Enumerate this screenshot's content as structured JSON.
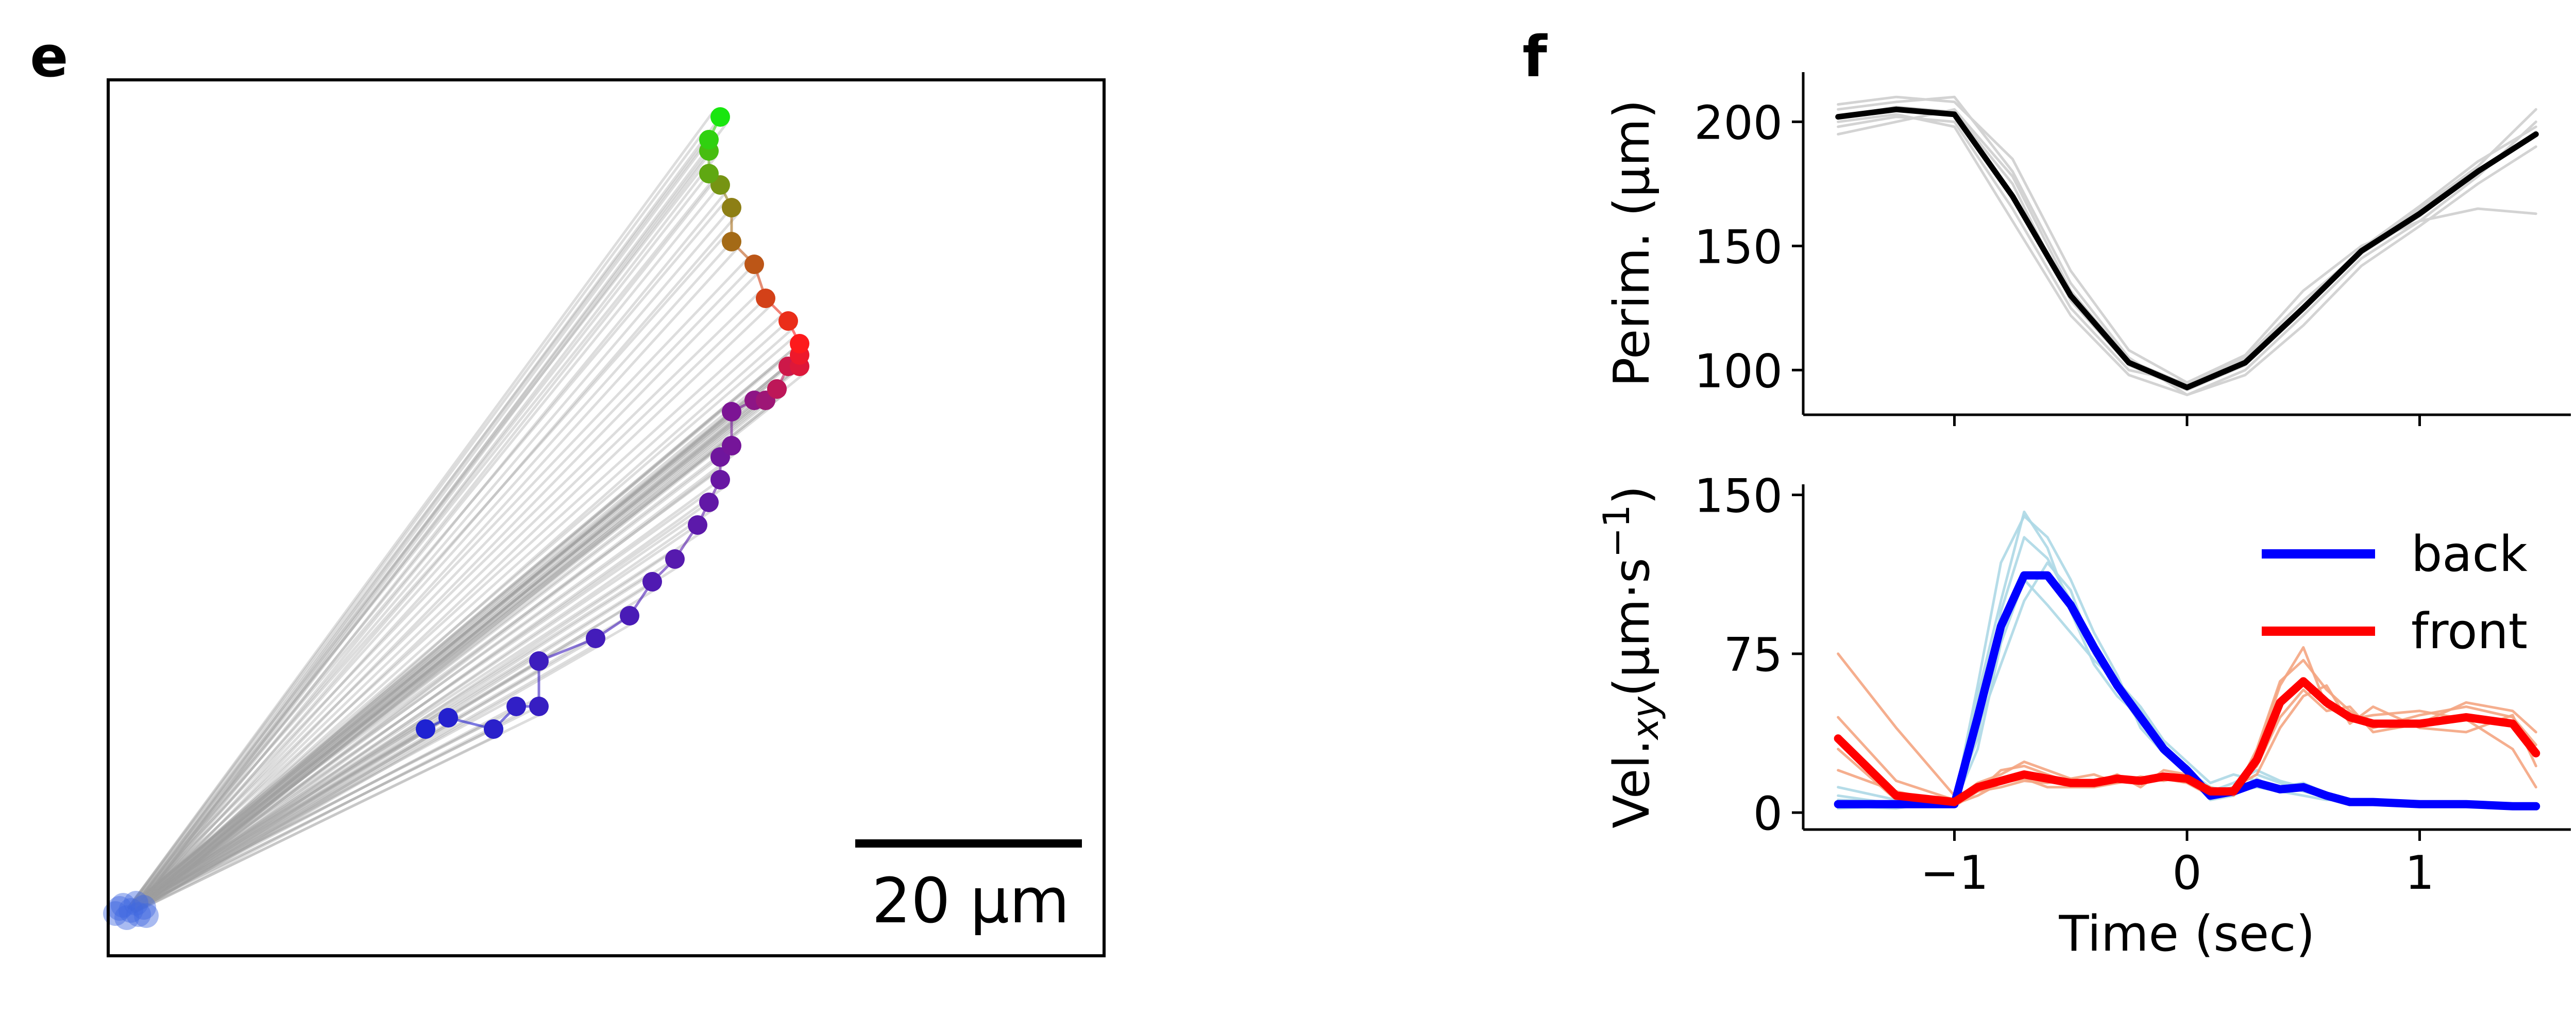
{
  "panels": {
    "e": "e",
    "f": "f"
  },
  "chart_data": [
    {
      "type": "scatter",
      "panel": "e",
      "title": "",
      "xlabel": "",
      "ylabel": "",
      "axes_ticks": false,
      "scalebar": {
        "label": "20 μm",
        "length_um": 20
      },
      "units": "μm",
      "anchor_point": {
        "x": 2,
        "y": 4,
        "color": "#4169e1"
      },
      "trajectory": {
        "x": [
          28,
          30,
          34,
          36,
          38,
          38,
          43,
          46,
          48,
          50,
          52,
          53,
          54,
          54,
          55,
          55,
          57,
          58,
          59,
          59,
          60,
          61,
          61,
          61,
          60,
          58,
          57,
          55,
          55,
          54,
          53,
          53,
          53,
          54
        ],
        "y": [
          20,
          21,
          20,
          22,
          22,
          26,
          28,
          30,
          33,
          35,
          38,
          40,
          42,
          44,
          45,
          48,
          49,
          49,
          50,
          50,
          52,
          52,
          53,
          54,
          56,
          58,
          61,
          63,
          66,
          68,
          69,
          71,
          72,
          74
        ],
        "color_start": "#1e22d2",
        "color_mid": "#7a1496",
        "color_red": "#ff1a1a",
        "color_end": "#19e60f"
      },
      "tether_color": "#9e9e9e"
    },
    {
      "type": "line",
      "panel": "f",
      "title": "",
      "xlabel": "",
      "ylabel": "Perim. (μm)",
      "xlim": [
        -1.65,
        1.65
      ],
      "ylim": [
        82,
        220
      ],
      "yticks": [
        100,
        150,
        200
      ],
      "xticks": [
        -1,
        0,
        1
      ],
      "show_xtick_labels": false,
      "x": [
        -1.5,
        -1.25,
        -1.0,
        -0.75,
        -0.5,
        -0.25,
        0.0,
        0.25,
        0.5,
        0.75,
        1.0,
        1.25,
        1.5
      ],
      "series": [
        {
          "values": [
            202,
            205,
            203,
            170,
            130,
            103,
            93,
            103,
            125,
            148,
            163,
            180,
            195
          ],
          "color": "#000000",
          "width": 11
        }
      ],
      "trials": [
        [
          205,
          208,
          210,
          180,
          135,
          105,
          90,
          100,
          122,
          145,
          160,
          178,
          200
        ],
        [
          200,
          203,
          198,
          160,
          122,
          98,
          90,
          98,
          118,
          142,
          158,
          175,
          190
        ],
        [
          198,
          202,
          200,
          165,
          125,
          100,
          95,
          105,
          128,
          148,
          165,
          182,
          205
        ],
        [
          207,
          210,
          208,
          185,
          140,
          108,
          95,
          106,
          132,
          150,
          160,
          165,
          163
        ],
        [
          202,
          206,
          204,
          175,
          128,
          102,
          92,
          102,
          124,
          147,
          162,
          180,
          196
        ],
        [
          195,
          200,
          205,
          178,
          132,
          104,
          94,
          104,
          126,
          149,
          166,
          184,
          198
        ]
      ],
      "trial_color": "#d3d3d3"
    },
    {
      "type": "line",
      "panel": "f",
      "title": "",
      "xlabel": "Time (sec)",
      "ylabel_main": "Vel.",
      "ylabel_sub": "xy",
      "ylabel_unit": "(μm·s",
      "ylabel_sup": "−1",
      "ylabel_close": ")",
      "xlim": [
        -1.65,
        1.65
      ],
      "ylim": [
        -8,
        155
      ],
      "yticks": [
        0,
        75,
        150
      ],
      "xticks": [
        -1,
        0,
        1
      ],
      "xtick_labels": [
        "−1",
        "0",
        "1"
      ],
      "legend_position": "top-right",
      "x": [
        -1.5,
        -1.25,
        -1.0,
        -0.9,
        -0.8,
        -0.7,
        -0.6,
        -0.5,
        -0.4,
        -0.3,
        -0.2,
        -0.1,
        0.0,
        0.1,
        0.2,
        0.3,
        0.4,
        0.5,
        0.6,
        0.7,
        0.8,
        1.0,
        1.2,
        1.4,
        1.5
      ],
      "series": [
        {
          "name": "back",
          "color": "#0000ff",
          "values": [
            4,
            4,
            4,
            45,
            88,
            112,
            112,
            98,
            78,
            60,
            45,
            30,
            20,
            8,
            10,
            14,
            11,
            12,
            8,
            5,
            5,
            4,
            4,
            3,
            3
          ]
        },
        {
          "name": "front",
          "color": "#ff0000",
          "values": [
            35,
            8,
            5,
            12,
            15,
            18,
            16,
            14,
            14,
            16,
            15,
            17,
            16,
            10,
            10,
            25,
            52,
            62,
            52,
            45,
            42,
            42,
            45,
            42,
            28
          ]
        }
      ],
      "trials_back": [
        [
          12,
          6,
          5,
          60,
          118,
          140,
          130,
          110,
          85,
          65,
          40,
          28,
          22,
          10,
          14,
          20,
          15,
          12,
          8,
          6,
          4,
          3,
          4,
          2,
          2
        ],
        [
          3,
          2,
          6,
          35,
          95,
          130,
          120,
          100,
          80,
          62,
          48,
          32,
          20,
          12,
          10,
          12,
          10,
          12,
          8,
          5,
          6,
          5,
          3,
          2,
          3
        ],
        [
          8,
          4,
          3,
          40,
          70,
          100,
          118,
          105,
          75,
          58,
          42,
          30,
          18,
          6,
          8,
          16,
          10,
          8,
          6,
          6,
          5,
          3,
          4,
          3,
          2
        ],
        [
          2,
          3,
          5,
          55,
          100,
          142,
          125,
          95,
          70,
          55,
          45,
          28,
          20,
          10,
          12,
          18,
          14,
          10,
          7,
          4,
          4,
          3,
          3,
          2,
          2
        ],
        [
          6,
          5,
          4,
          30,
          80,
          110,
          98,
          85,
          72,
          62,
          50,
          34,
          24,
          14,
          18,
          15,
          12,
          14,
          9,
          6,
          4,
          3,
          5,
          3,
          2
        ]
      ],
      "trials_front": [
        [
          75,
          40,
          8,
          10,
          20,
          22,
          18,
          14,
          13,
          17,
          14,
          18,
          16,
          12,
          8,
          30,
          62,
          72,
          58,
          48,
          40,
          46,
          50,
          45,
          32
        ],
        [
          20,
          10,
          4,
          8,
          14,
          16,
          12,
          12,
          12,
          14,
          16,
          16,
          14,
          8,
          12,
          18,
          40,
          55,
          60,
          42,
          50,
          40,
          38,
          46,
          22
        ],
        [
          45,
          15,
          6,
          14,
          18,
          24,
          20,
          16,
          14,
          18,
          12,
          20,
          18,
          10,
          9,
          28,
          60,
          78,
          50,
          44,
          46,
          48,
          44,
          30,
          12
        ],
        [
          30,
          6,
          3,
          10,
          12,
          15,
          14,
          16,
          18,
          14,
          17,
          15,
          18,
          9,
          11,
          22,
          45,
          58,
          48,
          50,
          38,
          42,
          52,
          48,
          38
        ]
      ],
      "trial_back_color": "#add8e6",
      "trial_front_color": "#f4a582"
    }
  ]
}
